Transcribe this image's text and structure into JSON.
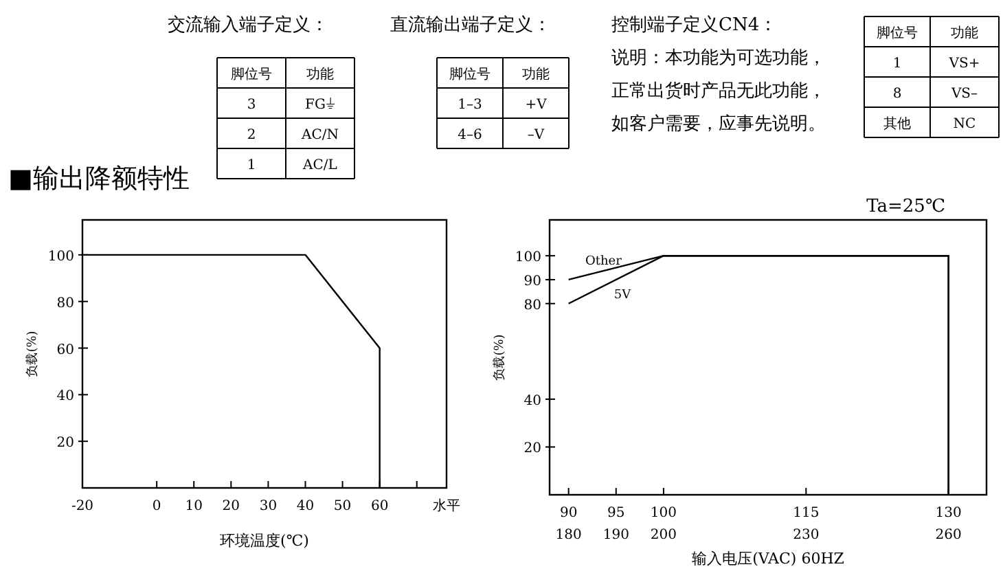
{
  "chart_data": [
    {
      "type": "other",
      "annotations": [
        "交流输入端子定义：",
        "脚位号",
        "功能",
        "3",
        "FG⏚",
        "2",
        "AC/N",
        "1",
        "AC/L",
        "直流输出端子定义：",
        "脚位号",
        "功能",
        "1–3",
        "+V",
        "4–6",
        "–V",
        "控制端子定义CN4：",
        "说明：本功能为可选功能，",
        "正常出货时产品无此功能，",
        "如客户需要，应事先说明。",
        "脚位号",
        "功能",
        "1",
        "VS+",
        "8",
        "VS–",
        "其他",
        "NC",
        "■输出降额特性"
      ]
    },
    {
      "type": "line",
      "xlabel": "环境温度(℃)",
      "ylabel": "负载(%)",
      "annotations": [
        "水平"
      ],
      "series": [
        {
          "color": "#000000",
          "x": [
            -20,
            40,
            60,
            60
          ],
          "values": [
            100,
            100,
            60,
            0
          ]
        }
      ],
      "xlim": [
        -20,
        78
      ],
      "ylim": [
        0,
        115
      ],
      "xticks": [
        -20,
        0,
        10,
        20,
        30,
        40,
        50,
        60,
        {
          "value": 70,
          "label": null
        }
      ],
      "yticks": [
        20,
        40,
        60,
        80,
        100
      ]
    },
    {
      "type": "line",
      "xlabel": "输入电压(VAC) 60HZ",
      "ylabel": "负载(%)",
      "annotations": [
        "Ta=25℃"
      ],
      "series": [
        {
          "name": "Other",
          "color": "#000000",
          "x": [
            90,
            100,
            130,
            130
          ],
          "values": [
            90,
            100,
            100,
            0
          ]
        },
        {
          "name": "5V",
          "color": "#000000",
          "x": [
            90,
            100,
            130,
            130
          ],
          "values": [
            80,
            100,
            100,
            0
          ]
        }
      ],
      "xlim": [
        88,
        134
      ],
      "ylim": [
        0,
        115
      ],
      "xticks": [
        90,
        95,
        100,
        115,
        130
      ],
      "x2lim": [
        176,
        268
      ],
      "x2ticks": [
        180,
        190,
        200,
        230,
        260
      ],
      "yticks": [
        20,
        40,
        80,
        90,
        100
      ]
    }
  ]
}
